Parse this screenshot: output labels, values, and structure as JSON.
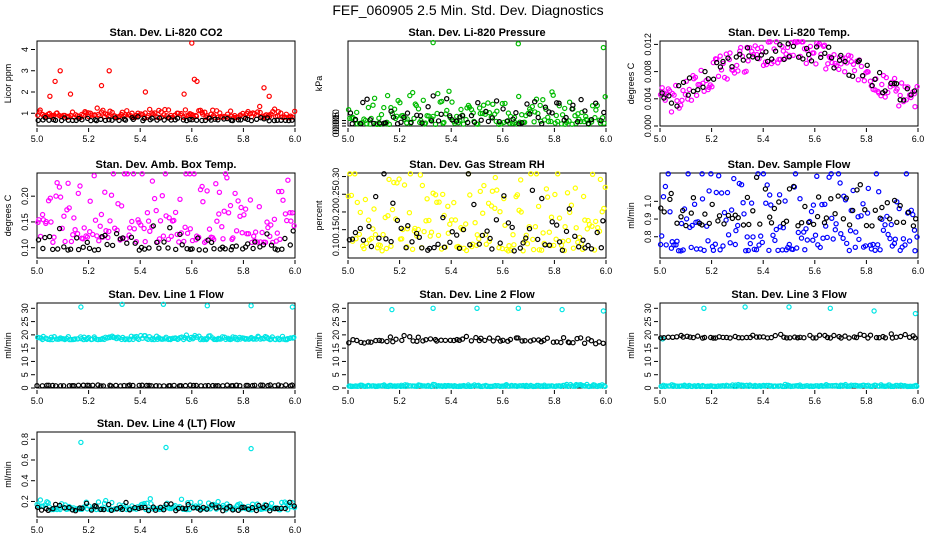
{
  "title": "FEF_060905  2.5 Min. Std. Dev. Diagnostics",
  "chart_data": [
    {
      "type": "scatter",
      "title": "Stan. Dev. Li-820 CO2",
      "ylabel": "Licor ppm",
      "xlim": [
        5.0,
        6.0
      ],
      "ylim": [
        0.4,
        4.4
      ],
      "xticks": [
        "5.0",
        "5.2",
        "5.4",
        "5.6",
        "5.8",
        "6.0"
      ],
      "yticks": [
        "1",
        "2",
        "3",
        "4"
      ],
      "series": [
        {
          "color": "#ff0000",
          "base": 0.8,
          "spread": 0.35,
          "extras": [
            [
              5.05,
              1.8
            ],
            [
              5.07,
              2.5
            ],
            [
              5.09,
              3.0
            ],
            [
              5.13,
              1.9
            ],
            [
              5.25,
              2.3
            ],
            [
              5.28,
              3.0
            ],
            [
              5.42,
              2.0
            ],
            [
              5.57,
              1.9
            ],
            [
              5.6,
              4.3
            ],
            [
              5.61,
              2.6
            ],
            [
              5.62,
              2.5
            ],
            [
              5.88,
              2.2
            ],
            [
              5.9,
              1.8
            ]
          ]
        },
        {
          "color": "#000000",
          "base": 0.65,
          "spread": 0.12,
          "extras": []
        }
      ]
    },
    {
      "type": "scatter",
      "title": "Stan. Dev. Li-820 Pressure",
      "ylabel": "kPa",
      "xlim": [
        5.0,
        6.0
      ],
      "ylim": [
        0.0,
        0.155
      ],
      "xticks": [
        "5.0",
        "5.2",
        "5.4",
        "5.6",
        "5.8",
        "6.0"
      ],
      "yticks": [
        "0.000",
        "0.005",
        "0.010"
      ],
      "series": [
        {
          "color": "#00bb00",
          "base": 0.003,
          "spread": 0.045,
          "extras": [
            [
              5.33,
              0.152
            ],
            [
              5.66,
              0.15
            ],
            [
              5.99,
              0.143
            ]
          ]
        },
        {
          "color": "#000000",
          "base": 0.004,
          "spread": 0.04,
          "extras": []
        }
      ]
    },
    {
      "type": "scatter",
      "title": "Stan. Dev. Li-820 Temp.",
      "ylabel": "degrees C",
      "xlim": [
        5.0,
        6.0
      ],
      "ylim": [
        0.0,
        0.0125
      ],
      "xticks": [
        "5.0",
        "5.2",
        "5.4",
        "5.6",
        "5.8",
        "6.0"
      ],
      "yticks": [
        "0.000",
        "0.004",
        "0.008",
        "0.012"
      ],
      "series": [
        {
          "color": "#ff00ff",
          "base": 0.004,
          "spread": 0.004,
          "arch": 0.0072,
          "extras": []
        },
        {
          "color": "#000000",
          "base": 0.004,
          "spread": 0.003,
          "arch": 0.0072,
          "extras": []
        }
      ]
    },
    {
      "type": "scatter",
      "title": "Stan. Dev. Amb. Box Temp.",
      "ylabel": "degrees C",
      "xlim": [
        5.0,
        6.0
      ],
      "ylim": [
        0.08,
        0.245
      ],
      "xticks": [
        "5.0",
        "5.2",
        "5.4",
        "5.6",
        "5.8",
        "6.0"
      ],
      "yticks": [
        "0.10",
        "0.15",
        "0.20"
      ],
      "series": [
        {
          "color": "#ff00ff",
          "base": 0.11,
          "spread": 0.11,
          "extras": []
        },
        {
          "color": "#000000",
          "base": 0.095,
          "spread": 0.035,
          "extras": []
        }
      ]
    },
    {
      "type": "scatter",
      "title": "Stan. Dev. Gas Stream RH",
      "ylabel": "percent",
      "xlim": [
        5.0,
        6.0
      ],
      "ylim": [
        0.07,
        0.31
      ],
      "xticks": [
        "5.0",
        "5.2",
        "5.4",
        "5.6",
        "5.8",
        "6.0"
      ],
      "yticks": [
        "0.10",
        "0.15",
        "0.20",
        "0.25",
        "0.30"
      ],
      "series": [
        {
          "color": "#ffff00",
          "base": 0.09,
          "spread": 0.19,
          "extras": []
        },
        {
          "color": "#000000",
          "base": 0.09,
          "spread": 0.17,
          "extras": []
        }
      ]
    },
    {
      "type": "scatter",
      "title": "Stan. Dev. Sample Flow",
      "ylabel": "ml/min",
      "xlim": [
        5.0,
        6.0
      ],
      "ylim": [
        0.68,
        1.16
      ],
      "xticks": [
        "5.0",
        "5.2",
        "5.4",
        "5.6",
        "5.8",
        "6.0"
      ],
      "yticks": [
        "0.8",
        "0.9",
        "1.0"
      ],
      "series": [
        {
          "color": "#0000ff",
          "base": 0.72,
          "spread": 0.42,
          "extras": []
        },
        {
          "color": "#000000",
          "base": 0.86,
          "spread": 0.2,
          "extras": []
        }
      ]
    },
    {
      "type": "scatter",
      "title": "Stan. Dev. Line 1 Flow",
      "ylabel": "ml/min",
      "xlim": [
        5.0,
        6.0
      ],
      "ylim": [
        0,
        32
      ],
      "xticks": [
        "5.0",
        "5.2",
        "5.4",
        "5.6",
        "5.8",
        "6.0"
      ],
      "yticks": [
        "0",
        "5",
        "10",
        "15",
        "20",
        "25",
        "30"
      ],
      "series": [
        {
          "color": "#00e5e5",
          "base": 18.2,
          "spread": 1.2,
          "extras": [
            [
              5.17,
              30.5
            ],
            [
              5.33,
              31.5
            ],
            [
              5.49,
              31.5
            ],
            [
              5.66,
              31.0
            ],
            [
              5.83,
              31.0
            ],
            [
              5.99,
              30.5
            ]
          ]
        },
        {
          "color": "#000000",
          "base": 0.8,
          "spread": 0.3,
          "extras": []
        }
      ]
    },
    {
      "type": "scatter",
      "title": "Stan. Dev. Line 2 Flow",
      "ylabel": "ml/min",
      "xlim": [
        5.0,
        6.0
      ],
      "ylim": [
        0,
        32
      ],
      "xticks": [
        "5.0",
        "5.2",
        "5.4",
        "5.6",
        "5.8",
        "6.0"
      ],
      "yticks": [
        "0",
        "5",
        "10",
        "15",
        "20",
        "25",
        "30"
      ],
      "series": [
        {
          "color": "#00e5e5",
          "base": 0.6,
          "spread": 0.5,
          "extras": [
            [
              5.17,
              29.5
            ],
            [
              5.33,
              30.0
            ],
            [
              5.5,
              30.0
            ],
            [
              5.66,
              30.0
            ],
            [
              5.83,
              29.5
            ],
            [
              5.99,
              29.0
            ]
          ]
        },
        {
          "color": "#000000",
          "base": 16.5,
          "spread": 1.6,
          "hump": 1.2,
          "extras": []
        }
      ]
    },
    {
      "type": "scatter",
      "title": "Stan. Dev. Line 3 Flow",
      "ylabel": "ml/min",
      "xlim": [
        5.0,
        6.0
      ],
      "ylim": [
        0,
        32
      ],
      "xticks": [
        "5.0",
        "5.2",
        "5.4",
        "5.6",
        "5.8",
        "6.0"
      ],
      "yticks": [
        "0",
        "5",
        "10",
        "15",
        "20",
        "25",
        "30"
      ],
      "series": [
        {
          "color": "#00e5e5",
          "base": 0.6,
          "spread": 0.5,
          "extras": [
            [
              5.01,
              18.5
            ],
            [
              5.17,
              30.0
            ],
            [
              5.33,
              30.5
            ],
            [
              5.5,
              30.5
            ],
            [
              5.66,
              30.0
            ],
            [
              5.83,
              29.0
            ],
            [
              5.99,
              28.0
            ]
          ]
        },
        {
          "color": "#000000",
          "base": 18.8,
          "spread": 1.2,
          "extras": []
        }
      ]
    },
    {
      "type": "scatter",
      "title": "Stan. Dev. Line 4 (LT) Flow",
      "ylabel": "ml/min",
      "xlim": [
        5.0,
        6.0
      ],
      "ylim": [
        0.05,
        0.87
      ],
      "xticks": [
        "5.0",
        "5.2",
        "5.4",
        "5.6",
        "5.8",
        "6.0"
      ],
      "yticks": [
        "0.2",
        "0.4",
        "0.6",
        "0.8"
      ],
      "series": [
        {
          "color": "#00e5e5",
          "base": 0.12,
          "spread": 0.07,
          "extras": [
            [
              5.17,
              0.77
            ],
            [
              5.5,
              0.72
            ],
            [
              5.83,
              0.71
            ]
          ]
        },
        {
          "color": "#000000",
          "base": 0.11,
          "spread": 0.06,
          "extras": []
        }
      ]
    }
  ]
}
